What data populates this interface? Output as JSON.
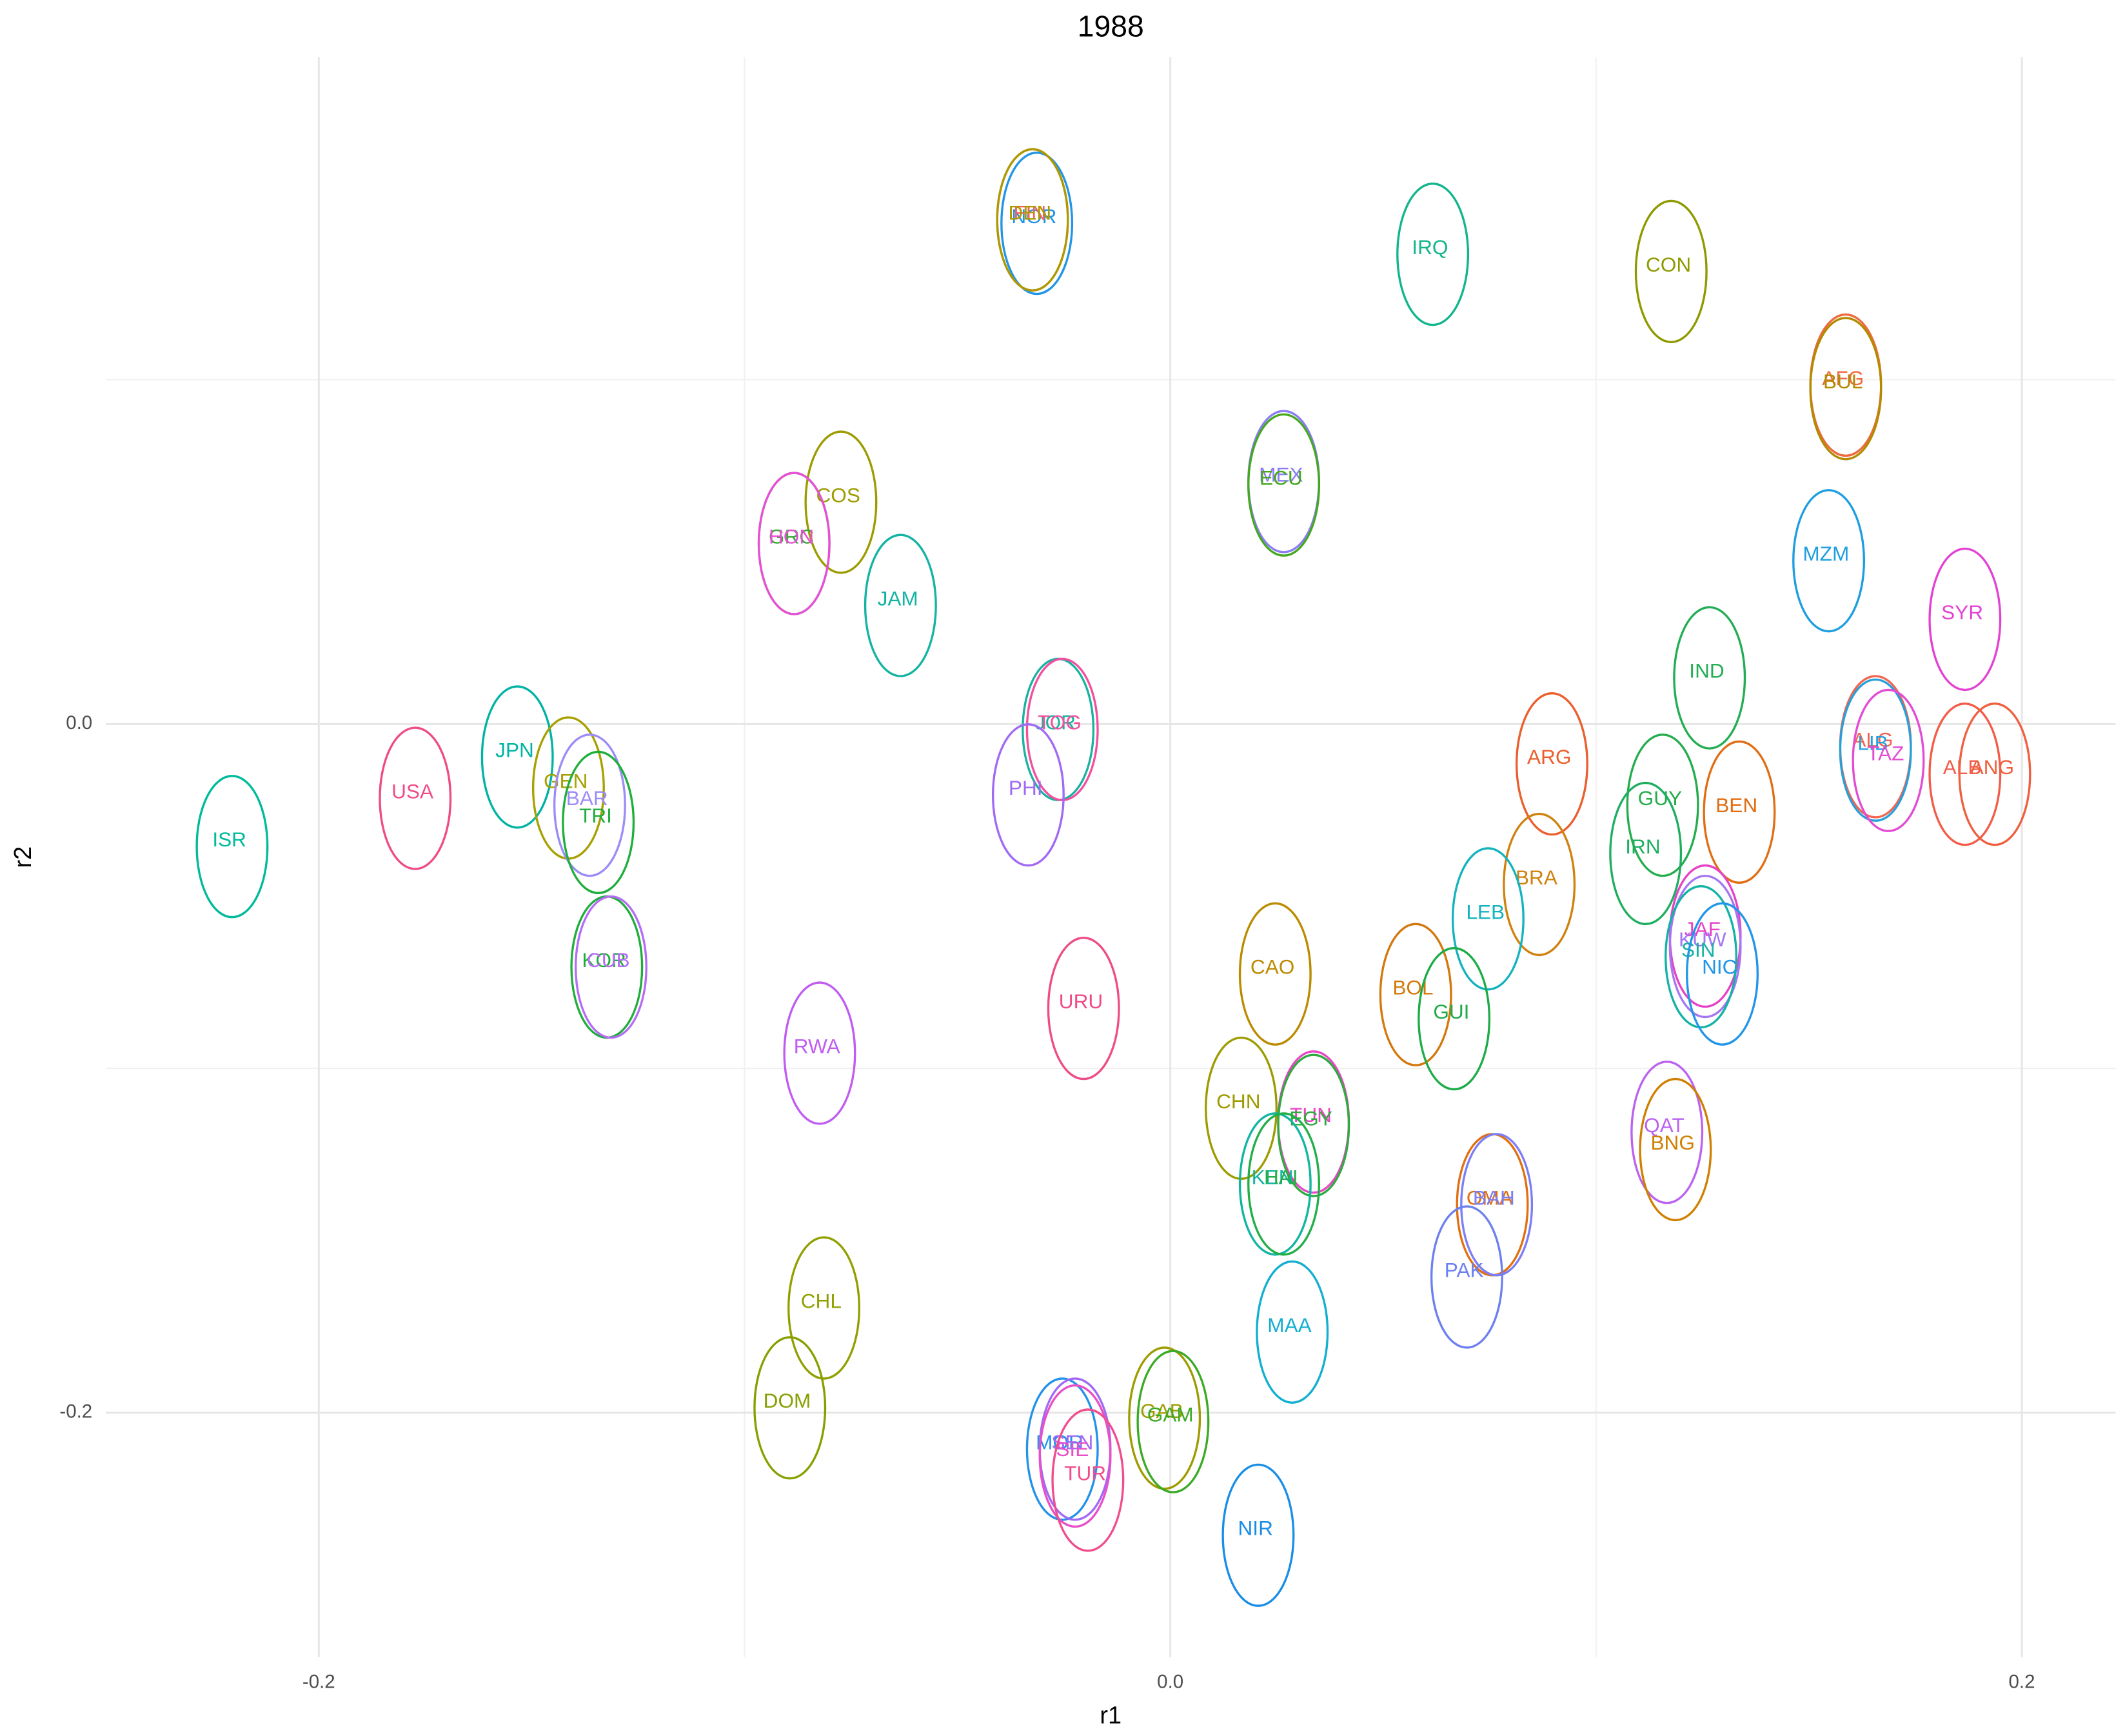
{
  "chart_data": {
    "type": "ellipse-scatter",
    "title": "1988",
    "x_label": "r1",
    "y_label": "r2",
    "xlim": [
      -0.25,
      0.222
    ],
    "ylim": [
      -0.271,
      0.1937
    ],
    "xticks": [
      -0.2,
      {
        "value": 0,
        "label": "0.0"
      },
      0.2
    ],
    "yticks": [
      -0.2,
      {
        "value": 0,
        "label": "0.0"
      }
    ],
    "xminor": [
      -0.1,
      0.1
    ],
    "yminor": [
      -0.1,
      0.1
    ],
    "grid": true,
    "ellipse_rx": 0.0083,
    "ellipse_ry": 0.0205,
    "labels": [
      "ISR",
      "USA",
      "JPN",
      "GEN",
      "BAR",
      "TRI",
      "KOR",
      "CUB",
      "NOR",
      "FIN",
      "DEN",
      "IRQ",
      "CON",
      "AFG",
      "BUL",
      "MEX",
      "ECU",
      "COS",
      "GRC",
      "HON",
      "JAM",
      "MZM",
      "SYR",
      "IND",
      "JOR",
      "TOG",
      "PHI",
      "ARG",
      "ALG",
      "LIB",
      "TAZ",
      "ALB",
      "ANG",
      "GUY",
      "BEN",
      "IRN",
      "BRA",
      "LEB",
      "JAF",
      "KUW",
      "SIN",
      "NIC",
      "CAO",
      "BOL",
      "GUI",
      "URU",
      "RWA",
      "CHN",
      "TUN",
      "EGY",
      "QAT",
      "BNG",
      "KEN",
      "HAI",
      "OMA",
      "BAH",
      "PAK",
      "CHL",
      "MAA",
      "DOM",
      "GAB",
      "GAM",
      "MOR",
      "SEN",
      "SIE",
      "TUR",
      "NIR"
    ],
    "x": [
      -0.221,
      -0.178,
      -0.154,
      -0.142,
      -0.137,
      -0.135,
      -0.133,
      -0.132,
      -0.032,
      -0.033,
      -0.033,
      0.061,
      0.117,
      0.158,
      0.158,
      0.026,
      0.026,
      -0.078,
      -0.089,
      -0.089,
      -0.064,
      0.154,
      0.186,
      0.126,
      -0.027,
      -0.026,
      -0.034,
      0.089,
      0.165,
      0.165,
      0.168,
      0.186,
      0.193,
      0.115,
      0.133,
      0.111,
      0.086,
      0.074,
      0.125,
      0.125,
      0.124,
      0.129,
      0.024,
      0.057,
      0.066,
      -0.021,
      -0.083,
      0.016,
      0.033,
      0.033,
      0.116,
      0.118,
      0.024,
      0.026,
      0.075,
      0.076,
      0.069,
      -0.082,
      0.028,
      -0.09,
      -0.002,
      0.0,
      -0.026,
      -0.023,
      -0.023,
      -0.02,
      0.02
    ],
    "values": [
      -0.034,
      -0.02,
      -0.008,
      -0.017,
      -0.022,
      -0.027,
      -0.069,
      -0.069,
      0.147,
      0.148,
      0.148,
      0.138,
      0.133,
      0.1,
      0.099,
      0.072,
      0.071,
      0.066,
      0.054,
      0.054,
      0.036,
      0.049,
      0.032,
      0.015,
      0.0,
      0.0,
      -0.019,
      -0.01,
      -0.005,
      -0.006,
      -0.009,
      -0.013,
      -0.013,
      -0.022,
      -0.024,
      -0.036,
      -0.045,
      -0.055,
      -0.06,
      -0.063,
      -0.066,
      -0.071,
      -0.071,
      -0.077,
      -0.084,
      -0.081,
      -0.094,
      -0.11,
      -0.114,
      -0.115,
      -0.117,
      -0.122,
      -0.132,
      -0.132,
      -0.138,
      -0.138,
      -0.159,
      -0.168,
      -0.175,
      -0.197,
      -0.2,
      -0.201,
      -0.209,
      -0.209,
      -0.211,
      -0.218,
      -0.234
    ],
    "colors": [
      "#00BA9C",
      "#EE4C87",
      "#00B3A4",
      "#A8A000",
      "#9C8CF8",
      "#1FAE3C",
      "#1FAE3C",
      "#B66CF6",
      "#2295E6",
      "#F2625E",
      "#AD9A00",
      "#12B58C",
      "#8E9A00",
      "#ED6A3E",
      "#B28B00",
      "#8B7CF6",
      "#45A81F",
      "#9C9C00",
      "#38A838",
      "#E84FD6",
      "#14B3A3",
      "#1E9EE0",
      "#E342D3",
      "#23AD54",
      "#1AB2A0",
      "#F2509E",
      "#A06AF5",
      "#EB5E2D",
      "#F16552",
      "#26A0DA",
      "#E34CD4",
      "#F25C48",
      "#EF6040",
      "#24AD4C",
      "#E06E14",
      "#1FAE60",
      "#D0820E",
      "#14B3BE",
      "#E642C8",
      "#A577F2",
      "#14B3A6",
      "#2196E8",
      "#BB8B00",
      "#D4780D",
      "#1DAC48",
      "#EE4C87",
      "#C05CF2",
      "#9D9B00",
      "#E846C4",
      "#2EAA40",
      "#BB62F0",
      "#D08000",
      "#12B5A0",
      "#22AE48",
      "#E07010",
      "#7C7EF4",
      "#6C80F0",
      "#91A000",
      "#12AFD0",
      "#86A000",
      "#9E9C00",
      "#3DAA26",
      "#2392E8",
      "#A06AF5",
      "#E84FC8",
      "#F04E8C",
      "#1A8EE6"
    ]
  }
}
